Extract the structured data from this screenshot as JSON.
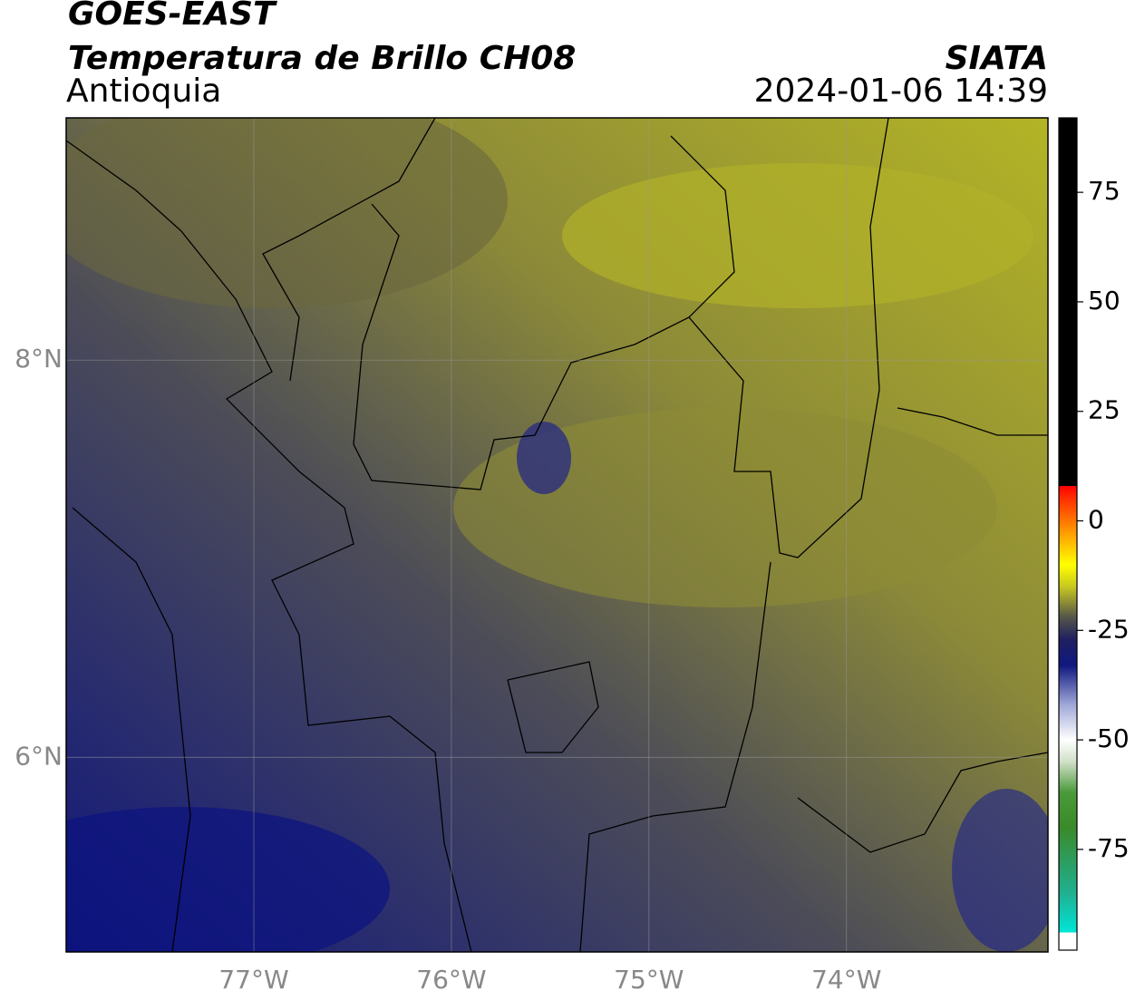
{
  "header": {
    "satellite": "GOES-EAST",
    "product": "Temperatura de Brillo CH08",
    "region": "Antioquia",
    "agency": "SIATA",
    "datetime": "2024-01-06 14:39"
  },
  "map": {
    "xlim": [
      -77.95,
      -72.98
    ],
    "ylim": [
      5.02,
      9.22
    ],
    "xticks": [
      {
        "value": -77,
        "label": "77°W"
      },
      {
        "value": -76,
        "label": "76°W"
      },
      {
        "value": -75,
        "label": "75°W"
      },
      {
        "value": -74,
        "label": "74°W"
      }
    ],
    "yticks": [
      {
        "value": 6,
        "label": "6°N"
      },
      {
        "value": 8,
        "label": "8°N"
      }
    ],
    "grid": true
  },
  "colorbar": {
    "ylim": [
      -98,
      92
    ],
    "yticks": [
      -75,
      -50,
      -25,
      0,
      25,
      50,
      75
    ],
    "stops": [
      {
        "value": -98,
        "color": "#ffffff"
      },
      {
        "value": -94,
        "color": "#ffffff"
      },
      {
        "value": -94,
        "color": "#00e5d8"
      },
      {
        "value": -85,
        "color": "#20b090"
      },
      {
        "value": -70,
        "color": "#3a8a2a"
      },
      {
        "value": -62,
        "color": "#4a9a3a"
      },
      {
        "value": -55,
        "color": "#d0e0c8"
      },
      {
        "value": -50,
        "color": "#ffffff"
      },
      {
        "value": -42,
        "color": "#a0a8d8"
      },
      {
        "value": -33,
        "color": "#101880"
      },
      {
        "value": -27,
        "color": "#202060"
      },
      {
        "value": -22,
        "color": "#55554a"
      },
      {
        "value": -15,
        "color": "#c8c820"
      },
      {
        "value": -10,
        "color": "#ffff00"
      },
      {
        "value": -3,
        "color": "#ffa000"
      },
      {
        "value": 5,
        "color": "#ff3000"
      },
      {
        "value": 8,
        "color": "#ff0000"
      },
      {
        "value": 8,
        "color": "#000000"
      },
      {
        "value": 92,
        "color": "#000000"
      }
    ]
  }
}
